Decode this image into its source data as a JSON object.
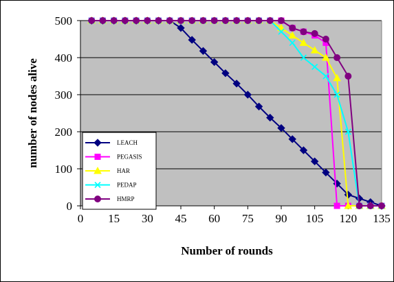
{
  "chart_data": {
    "type": "line",
    "xlabel": "Number of rounds",
    "ylabel": "number of nodes alive",
    "xlim": [
      0,
      135
    ],
    "ylim": [
      0,
      500
    ],
    "xticks": [
      0,
      15,
      30,
      45,
      60,
      75,
      90,
      105,
      120,
      135
    ],
    "yticks": [
      0,
      100,
      200,
      300,
      400,
      500
    ],
    "grid": "horizontal",
    "legend_position": "bottom-left",
    "series": [
      {
        "name": "LEACH",
        "color": "#000080",
        "marker": "diamond",
        "points": [
          [
            5,
            500
          ],
          [
            10,
            500
          ],
          [
            15,
            500
          ],
          [
            20,
            500
          ],
          [
            25,
            500
          ],
          [
            30,
            500
          ],
          [
            35,
            500
          ],
          [
            40,
            500
          ],
          [
            45,
            480
          ],
          [
            50,
            448
          ],
          [
            55,
            418
          ],
          [
            60,
            388
          ],
          [
            65,
            358
          ],
          [
            70,
            330
          ],
          [
            75,
            300
          ],
          [
            80,
            268
          ],
          [
            85,
            238
          ],
          [
            90,
            210
          ],
          [
            95,
            180
          ],
          [
            100,
            150
          ],
          [
            105,
            120
          ],
          [
            110,
            90
          ],
          [
            115,
            60
          ],
          [
            120,
            30
          ],
          [
            125,
            20
          ],
          [
            130,
            10
          ],
          [
            135,
            0
          ]
        ]
      },
      {
        "name": "PEGASIS",
        "color": "#ff00ff",
        "marker": "square",
        "points": [
          [
            5,
            500
          ],
          [
            10,
            500
          ],
          [
            15,
            500
          ],
          [
            20,
            500
          ],
          [
            25,
            500
          ],
          [
            30,
            500
          ],
          [
            35,
            500
          ],
          [
            40,
            500
          ],
          [
            45,
            500
          ],
          [
            50,
            500
          ],
          [
            55,
            500
          ],
          [
            60,
            500
          ],
          [
            65,
            500
          ],
          [
            70,
            500
          ],
          [
            75,
            500
          ],
          [
            80,
            500
          ],
          [
            85,
            500
          ],
          [
            90,
            500
          ],
          [
            95,
            480
          ],
          [
            100,
            470
          ],
          [
            105,
            460
          ],
          [
            110,
            440
          ],
          [
            115,
            0
          ],
          [
            120,
            0
          ],
          [
            125,
            0
          ],
          [
            130,
            0
          ],
          [
            135,
            0
          ]
        ]
      },
      {
        "name": "HAR",
        "color": "#ffff00",
        "marker": "triangle",
        "points": [
          [
            5,
            500
          ],
          [
            10,
            500
          ],
          [
            15,
            500
          ],
          [
            20,
            500
          ],
          [
            25,
            500
          ],
          [
            30,
            500
          ],
          [
            35,
            500
          ],
          [
            40,
            500
          ],
          [
            45,
            500
          ],
          [
            50,
            500
          ],
          [
            55,
            500
          ],
          [
            60,
            500
          ],
          [
            65,
            500
          ],
          [
            70,
            500
          ],
          [
            75,
            500
          ],
          [
            80,
            500
          ],
          [
            85,
            500
          ],
          [
            90,
            480
          ],
          [
            95,
            460
          ],
          [
            100,
            440
          ],
          [
            105,
            420
          ],
          [
            110,
            400
          ],
          [
            115,
            345
          ],
          [
            120,
            0
          ],
          [
            125,
            0
          ],
          [
            130,
            0
          ],
          [
            135,
            0
          ]
        ]
      },
      {
        "name": "PEDAP",
        "color": "#00ffff",
        "marker": "x",
        "points": [
          [
            5,
            500
          ],
          [
            10,
            500
          ],
          [
            15,
            500
          ],
          [
            20,
            500
          ],
          [
            25,
            500
          ],
          [
            30,
            500
          ],
          [
            35,
            500
          ],
          [
            40,
            500
          ],
          [
            45,
            500
          ],
          [
            50,
            500
          ],
          [
            55,
            500
          ],
          [
            60,
            500
          ],
          [
            65,
            500
          ],
          [
            70,
            500
          ],
          [
            75,
            500
          ],
          [
            80,
            500
          ],
          [
            85,
            500
          ],
          [
            90,
            470
          ],
          [
            95,
            440
          ],
          [
            100,
            400
          ],
          [
            105,
            375
          ],
          [
            110,
            350
          ],
          [
            115,
            300
          ],
          [
            120,
            200
          ],
          [
            125,
            0
          ],
          [
            130,
            0
          ],
          [
            135,
            0
          ]
        ]
      },
      {
        "name": "HMRP",
        "color": "#800080",
        "marker": "circle",
        "points": [
          [
            5,
            500
          ],
          [
            10,
            500
          ],
          [
            15,
            500
          ],
          [
            20,
            500
          ],
          [
            25,
            500
          ],
          [
            30,
            500
          ],
          [
            35,
            500
          ],
          [
            40,
            500
          ],
          [
            45,
            500
          ],
          [
            50,
            500
          ],
          [
            55,
            500
          ],
          [
            60,
            500
          ],
          [
            65,
            500
          ],
          [
            70,
            500
          ],
          [
            75,
            500
          ],
          [
            80,
            500
          ],
          [
            85,
            500
          ],
          [
            90,
            500
          ],
          [
            95,
            480
          ],
          [
            100,
            470
          ],
          [
            105,
            465
          ],
          [
            110,
            450
          ],
          [
            115,
            400
          ],
          [
            120,
            350
          ],
          [
            125,
            0
          ],
          [
            130,
            0
          ],
          [
            135,
            0
          ]
        ]
      }
    ]
  }
}
